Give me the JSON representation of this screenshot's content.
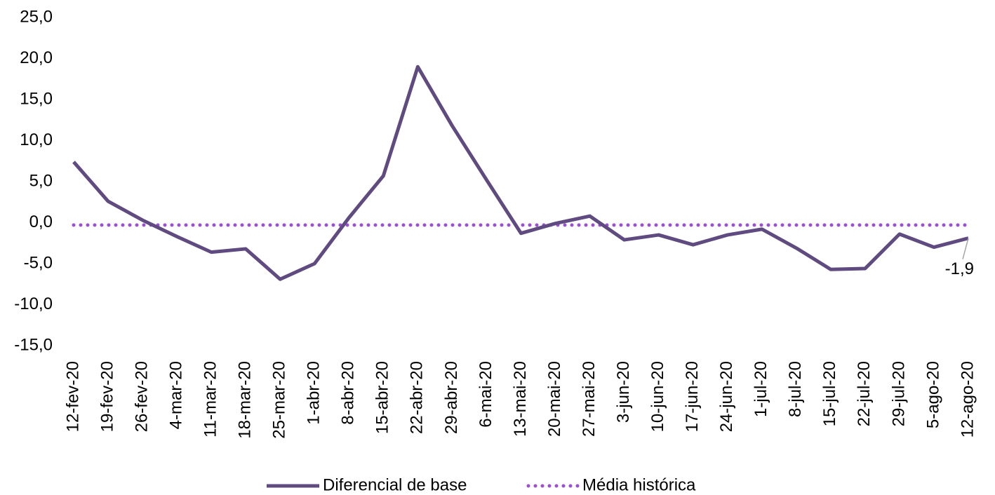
{
  "chart_data": {
    "type": "line",
    "categories": [
      "12-fev-20",
      "19-fev-20",
      "26-fev-20",
      "4-mar-20",
      "11-mar-20",
      "18-mar-20",
      "25-mar-20",
      "1-abr-20",
      "8-abr-20",
      "15-abr-20",
      "22-abr-20",
      "29-abr-20",
      "6-mai-20",
      "13-mai-20",
      "20-mai-20",
      "27-mai-20",
      "3-jun-20",
      "10-jun-20",
      "17-jun-20",
      "24-jun-20",
      "1-jul-20",
      "8-jul-20",
      "15-jul-20",
      "22-jul-20",
      "29-jul-20",
      "5-ago-20",
      "12-ago-20"
    ],
    "series": [
      {
        "name": "Diferencial de base",
        "color": "#5f4b80",
        "style": "solid",
        "values": [
          7.4,
          2.6,
          0.3,
          -1.7,
          -3.6,
          -3.2,
          -6.9,
          -5.0,
          0.6,
          5.7,
          19.0,
          11.8,
          5.2,
          -1.3,
          -0.1,
          0.8,
          -2.1,
          -1.5,
          -2.7,
          -1.5,
          -0.8,
          -3.1,
          -5.7,
          -5.6,
          -1.4,
          -3.0,
          -1.9
        ],
        "value_labels": [
          null,
          null,
          null,
          null,
          null,
          null,
          null,
          null,
          null,
          null,
          null,
          null,
          null,
          null,
          null,
          null,
          null,
          null,
          null,
          null,
          null,
          null,
          null,
          null,
          null,
          null,
          "-1,9"
        ]
      },
      {
        "name": "Média histórica",
        "color": "#9b4fd4",
        "style": "dotted",
        "values": [
          -0.3,
          -0.3,
          -0.3,
          -0.3,
          -0.3,
          -0.3,
          -0.3,
          -0.3,
          -0.3,
          -0.3,
          -0.3,
          -0.3,
          -0.3,
          -0.3,
          -0.3,
          -0.3,
          -0.3,
          -0.3,
          -0.3,
          -0.3,
          -0.3,
          -0.3,
          -0.3,
          -0.3,
          -0.3,
          -0.3,
          -0.3
        ]
      }
    ],
    "ylim": [
      -15,
      25
    ],
    "yticks": [
      {
        "value": -15,
        "label": "-15,0"
      },
      {
        "value": -10,
        "label": "-10,0"
      },
      {
        "value": -5,
        "label": "-5,0"
      },
      {
        "value": 0,
        "label": "0,0"
      },
      {
        "value": 5,
        "label": "5,0"
      },
      {
        "value": 10,
        "label": "10,0"
      },
      {
        "value": 15,
        "label": "15,0"
      },
      {
        "value": 20,
        "label": "20,0"
      },
      {
        "value": 25,
        "label": "25,0"
      }
    ],
    "legend": "bottom"
  }
}
